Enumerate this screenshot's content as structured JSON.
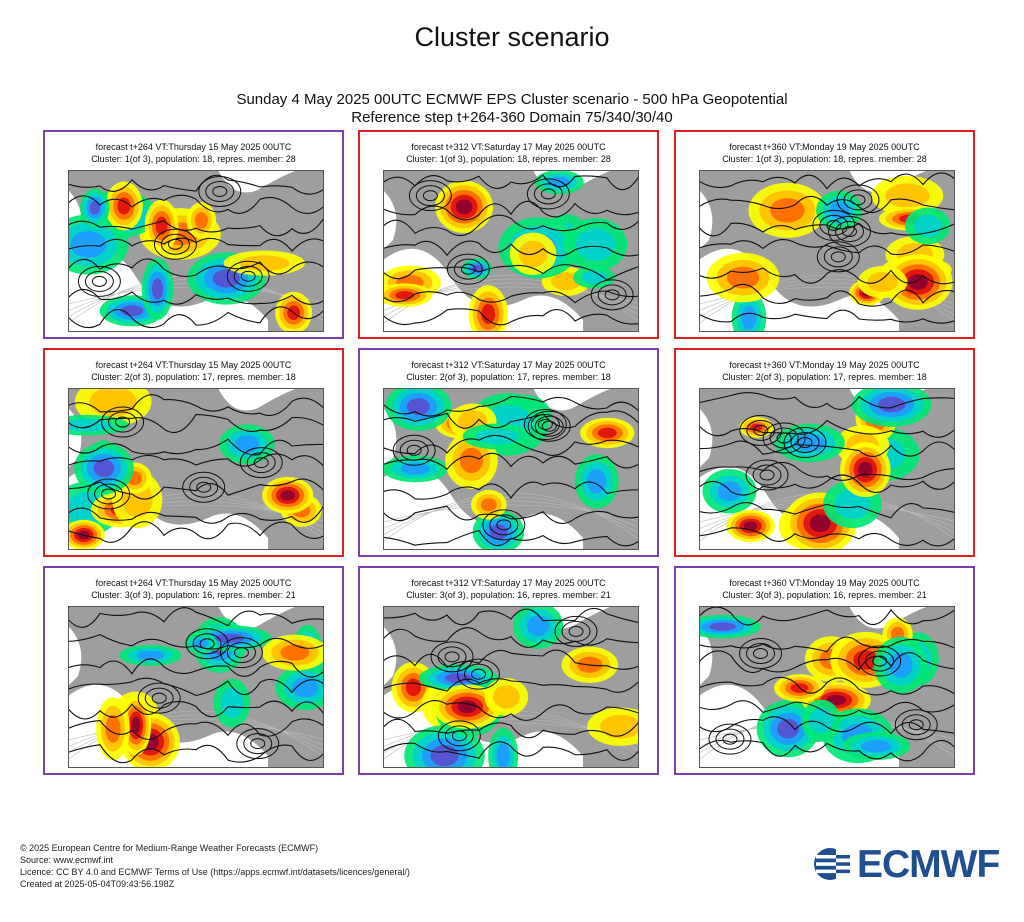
{
  "page_title": "Cluster scenario",
  "main_title": {
    "line1": "Sunday 4 May 2025 00UTC ECMWF EPS Cluster scenario - 500 hPa Geopotential",
    "line2": "Reference step t+264-360 Domain 75/340/30/40"
  },
  "colors": {
    "purple_frame": "#7b3fb0",
    "red_frame": "#e02020",
    "land": "#9e9e9e",
    "ocean": "#ffffff",
    "brand": "#1f4f8e"
  },
  "chart_data": {
    "type": "heatmap",
    "panels": [
      {
        "line1": "forecast t+264 VT:Thursday 15 May 2025 00UTC",
        "line2": "Cluster: 1(of 3), population: 18, repres. member: 28",
        "frame": "purple",
        "row": 0,
        "col": 0
      },
      {
        "line1": "forecast t+312 VT:Saturday 17 May 2025 00UTC",
        "line2": "Cluster: 1(of 3), population: 18, repres. member: 28",
        "frame": "red",
        "row": 0,
        "col": 1
      },
      {
        "line1": "forecast t+360 VT:Monday 19 May 2025 00UTC",
        "line2": "Cluster: 1(of 3), population: 18, repres. member: 28",
        "frame": "red",
        "row": 0,
        "col": 2
      },
      {
        "line1": "forecast t+264 VT:Thursday 15 May 2025 00UTC",
        "line2": "Cluster: 2(of 3), population: 17, repres. member: 18",
        "frame": "red",
        "row": 1,
        "col": 0
      },
      {
        "line1": "forecast t+312 VT:Saturday 17 May 2025 00UTC",
        "line2": "Cluster: 2(of 3), population: 17, repres. member: 18",
        "frame": "purple",
        "row": 1,
        "col": 1
      },
      {
        "line1": "forecast t+360 VT:Monday 19 May 2025 00UTC",
        "line2": "Cluster: 2(of 3), population: 17, repres. member: 18",
        "frame": "red",
        "row": 1,
        "col": 2
      },
      {
        "line1": "forecast t+264 VT:Thursday 15 May 2025 00UTC",
        "line2": "Cluster: 3(of 3), population: 16, repres. member: 21",
        "frame": "purple",
        "row": 2,
        "col": 0
      },
      {
        "line1": "forecast t+312 VT:Saturday 17 May 2025 00UTC",
        "line2": "Cluster: 3(of 3), population: 16, repres. member: 21",
        "frame": "purple",
        "row": 2,
        "col": 1
      },
      {
        "line1": "forecast t+360 VT:Monday 19 May 2025 00UTC",
        "line2": "Cluster: 3(of 3), population: 16, repres. member: 21",
        "frame": "purple",
        "row": 2,
        "col": 2
      }
    ]
  },
  "footer": {
    "line1": "© 2025 European Centre for Medium-Range Weather Forecasts (ECMWF)",
    "line2": "Source: www.ecmwf.int",
    "line3": "Licence: CC BY 4.0 and ECMWF Terms of Use (https://apps.ecmwf.int/datasets/licences/general/)",
    "line4": "Created at 2025-05-04T09:43:56.198Z"
  },
  "logo_text": "ECMWF"
}
